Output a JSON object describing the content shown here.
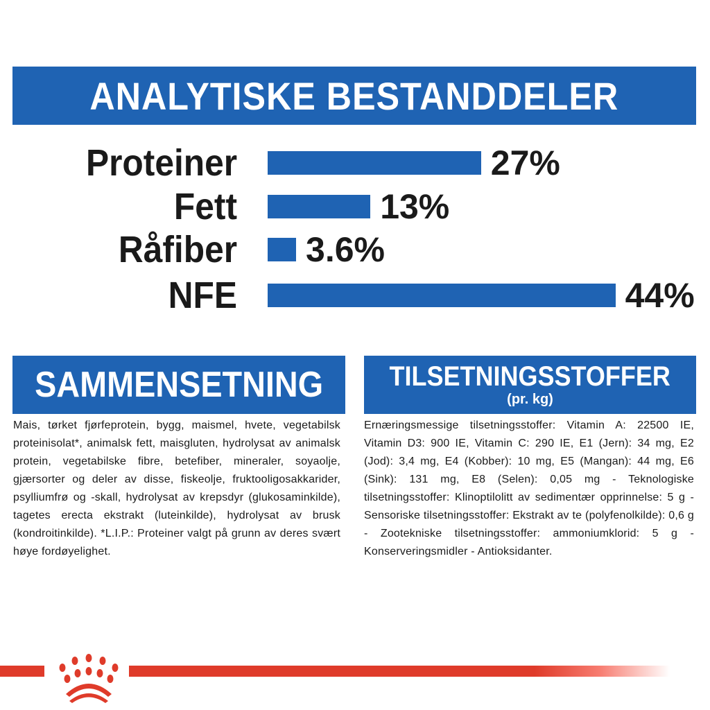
{
  "header": {
    "title": "ANALYTISKE BESTANDDELER"
  },
  "analytics": [
    {
      "label": "Proteiner",
      "value_text": "27%",
      "percent": 27
    },
    {
      "label": "Fett",
      "value_text": "13%",
      "percent": 13
    },
    {
      "label": "Råfiber",
      "value_text": "3.6%",
      "percent": 3.6
    },
    {
      "label": "NFE",
      "value_text": "44%",
      "percent": 44
    }
  ],
  "composition": {
    "title": "SAMMENSETNING",
    "text": "Mais, tørket fjørfeprotein, bygg, maismel, hvete, vegetabilsk proteinisolat*, animalsk fett, maisgluten, hydrolysat av animalsk protein, vegetabilske fibre, betefiber, mineraler, soyaolje, gjærsorter og deler av disse, fiskeolje, fruktooligosakkarider, psylliumfrø og -skall, hydrolysat av krepsdyr (glukosaminkilde), tagetes erecta ekstrakt (luteinkilde), hydrolysat av brusk (kondroitinkilde). *L.I.P.: Proteiner valgt på grunn av deres svært høye fordøyelighet."
  },
  "additives": {
    "title": "TILSETNINGSSTOFFER",
    "subtitle": "(pr. kg)",
    "text": "Ernæringsmessige tilsetningsstoffer: Vitamin A: 22500 IE, Vitamin D3: 900 IE, Vitamin C: 290 IE, E1 (Jern): 34 mg, E2 (Jod): 3,4 mg, E4 (Kobber): 10 mg, E5 (Mangan): 44 mg, E6 (Sink): 131 mg, E8 (Selen): 0,05 mg - Teknologiske tilsetningsstoffer: Klinoptilolitt av sedimentær opprinnelse: 5 g - Sensoriske tilsetningsstoffer: Ekstrakt av te (polyfenolkilde): 0,6 g - Zootekniske tilsetningsstoffer: ammoniumklorid: 5 g - Konserveringsmidler - Antioksidanter."
  },
  "colors": {
    "brand_blue": "#1f63b3",
    "brand_red": "#df3b2a"
  },
  "footer": {
    "logo_icon": "royal-canin-crown-icon"
  }
}
